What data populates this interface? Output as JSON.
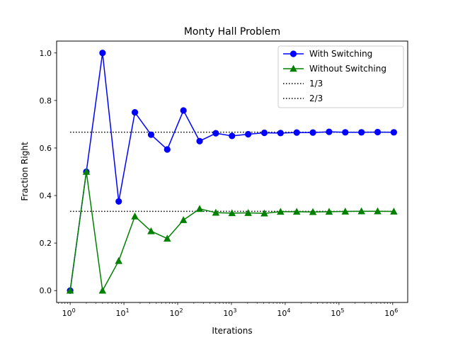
{
  "chart_data": {
    "type": "line",
    "title": "Monty Hall Problem",
    "xlabel": "Iterations",
    "ylabel": "Fraction Right",
    "xscale": "log",
    "xlim": [
      0.56,
      1900000
    ],
    "ylim": [
      -0.05,
      1.05
    ],
    "grid": false,
    "legend_position": "upper right",
    "x_ticks": [
      {
        "value": 1,
        "base": "10",
        "exp": "0"
      },
      {
        "value": 10,
        "base": "10",
        "exp": "1"
      },
      {
        "value": 100,
        "base": "10",
        "exp": "2"
      },
      {
        "value": 1000,
        "base": "10",
        "exp": "3"
      },
      {
        "value": 10000,
        "base": "10",
        "exp": "4"
      },
      {
        "value": 100000,
        "base": "10",
        "exp": "5"
      },
      {
        "value": 1000000,
        "base": "10",
        "exp": "6"
      }
    ],
    "y_ticks": [
      {
        "value": 0.0,
        "label": "0.0"
      },
      {
        "value": 0.2,
        "label": "0.2"
      },
      {
        "value": 0.4,
        "label": "0.4"
      },
      {
        "value": 0.6,
        "label": "0.6"
      },
      {
        "value": 0.8,
        "label": "0.8"
      },
      {
        "value": 1.0,
        "label": "1.0"
      }
    ],
    "x": [
      1,
      2,
      4,
      8,
      16,
      32,
      64,
      128,
      256,
      512,
      1024,
      2048,
      4096,
      8192,
      16384,
      32768,
      65536,
      131072,
      262144,
      524288,
      1048576
    ],
    "series": [
      {
        "name": "With Switching",
        "color": "#0000ff",
        "marker": "circle",
        "style": "solid",
        "values": [
          0.0,
          0.5,
          1.0,
          0.375,
          0.75,
          0.656,
          0.594,
          0.758,
          0.629,
          0.662,
          0.651,
          0.658,
          0.664,
          0.663,
          0.665,
          0.665,
          0.668,
          0.666,
          0.666,
          0.667,
          0.666
        ]
      },
      {
        "name": "Without Switching",
        "color": "#008000",
        "marker": "triangle",
        "style": "solid",
        "values": [
          0.0,
          0.5,
          0.0,
          0.125,
          0.3125,
          0.25,
          0.219,
          0.297,
          0.344,
          0.328,
          0.326,
          0.327,
          0.325,
          0.332,
          0.332,
          0.331,
          0.332,
          0.333,
          0.334,
          0.334,
          0.333
        ]
      },
      {
        "name": "1/3",
        "color": "#000000",
        "marker": "none",
        "style": "dotted",
        "constant": 0.3333
      },
      {
        "name": "2/3",
        "color": "#000000",
        "marker": "none",
        "style": "dotted",
        "constant": 0.6667
      }
    ]
  }
}
